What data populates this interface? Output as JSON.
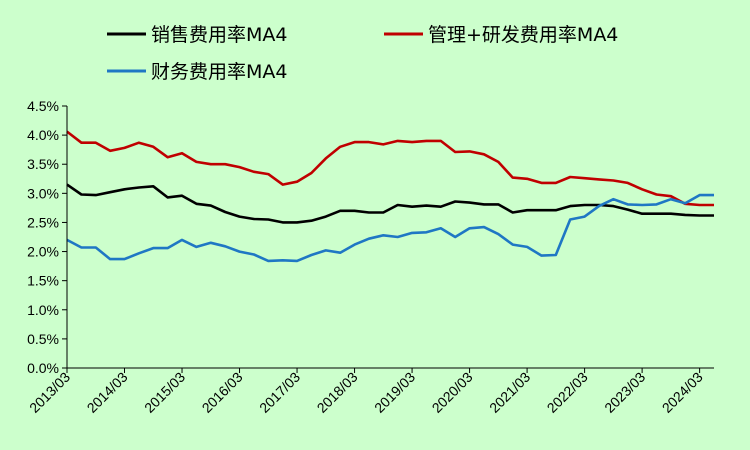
{
  "chart_data": {
    "type": "line",
    "title": "",
    "xlabel": "",
    "ylabel": "",
    "ylim": [
      0,
      4.5
    ],
    "y_ticks": [
      "0.0%",
      "0.5%",
      "1.0%",
      "1.5%",
      "2.0%",
      "2.5%",
      "3.0%",
      "3.5%",
      "4.0%",
      "4.5%"
    ],
    "x_tick_labels": [
      "2013/03",
      "2014/03",
      "2015/03",
      "2016/03",
      "2017/03",
      "2018/03",
      "2019/03",
      "2020/03",
      "2021/03",
      "2022/03",
      "2023/03",
      "2024/03"
    ],
    "grid": false,
    "legend_position": "top",
    "series": [
      {
        "name": "销售费用率MA4",
        "color": "#000000",
        "values": [
          3.15,
          2.98,
          2.97,
          3.02,
          3.07,
          3.1,
          3.12,
          2.93,
          2.96,
          2.82,
          2.79,
          2.68,
          2.6,
          2.56,
          2.55,
          2.5,
          2.5,
          2.53,
          2.6,
          2.7,
          2.7,
          2.67,
          2.67,
          2.8,
          2.77,
          2.79,
          2.77,
          2.86,
          2.84,
          2.81,
          2.81,
          2.67,
          2.71,
          2.71,
          2.71,
          2.78,
          2.8,
          2.8,
          2.78,
          2.72,
          2.65,
          2.65,
          2.65,
          2.63,
          2.62,
          2.62
        ]
      },
      {
        "name": "管理+研发费用率MA4",
        "color": "#c00000",
        "values": [
          4.06,
          3.87,
          3.87,
          3.73,
          3.78,
          3.87,
          3.8,
          3.62,
          3.69,
          3.54,
          3.5,
          3.5,
          3.45,
          3.37,
          3.33,
          3.15,
          3.2,
          3.35,
          3.6,
          3.8,
          3.88,
          3.88,
          3.84,
          3.9,
          3.88,
          3.9,
          3.9,
          3.71,
          3.72,
          3.67,
          3.54,
          3.27,
          3.25,
          3.18,
          3.18,
          3.28,
          3.26,
          3.24,
          3.22,
          3.18,
          3.07,
          2.98,
          2.95,
          2.82,
          2.8,
          2.8
        ]
      },
      {
        "name": "财务费用率MA4",
        "color": "#1f77c4",
        "values": [
          2.2,
          2.07,
          2.07,
          1.87,
          1.87,
          1.97,
          2.06,
          2.06,
          2.2,
          2.08,
          2.15,
          2.09,
          2.0,
          1.95,
          1.84,
          1.85,
          1.84,
          1.94,
          2.02,
          1.98,
          2.12,
          2.22,
          2.28,
          2.25,
          2.32,
          2.33,
          2.4,
          2.25,
          2.4,
          2.42,
          2.3,
          2.12,
          2.08,
          1.93,
          1.94,
          2.55,
          2.6,
          2.78,
          2.9,
          2.81,
          2.8,
          2.81,
          2.9,
          2.83,
          2.97,
          2.97
        ]
      }
    ]
  }
}
